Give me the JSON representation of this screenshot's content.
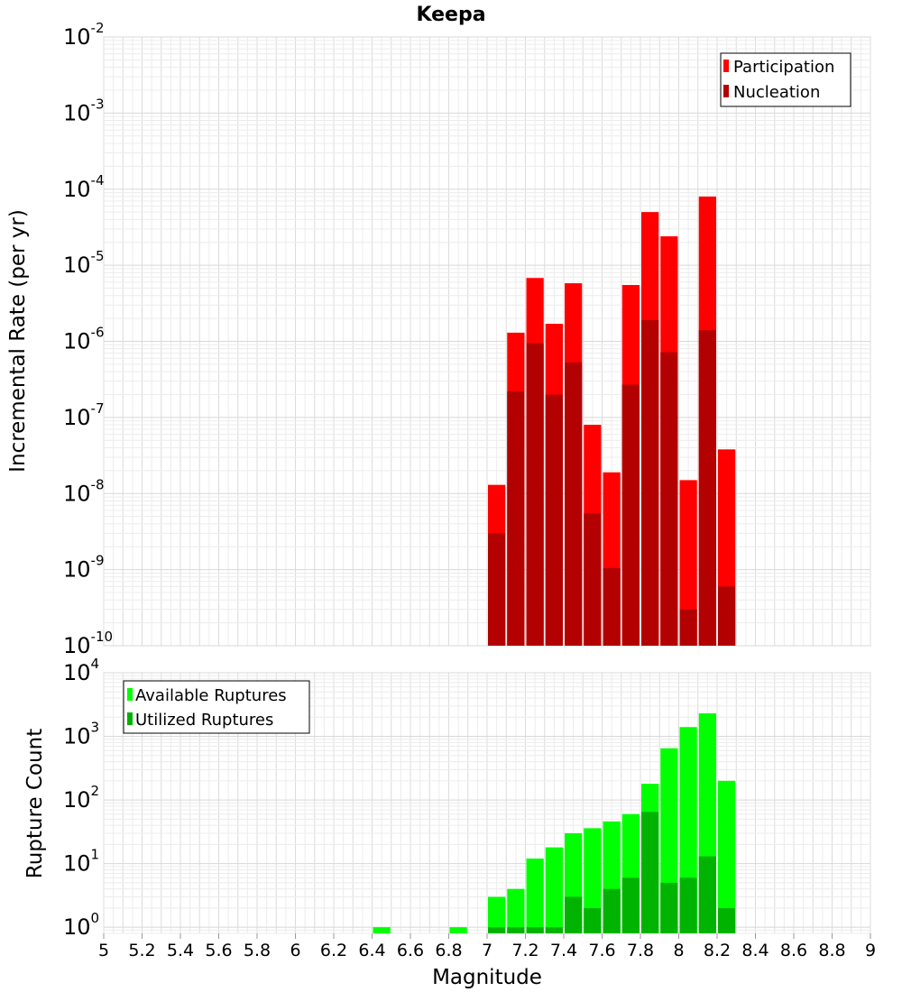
{
  "chart_data": [
    {
      "type": "bar",
      "title": "Keepa",
      "ylabel": "Incremental Rate (per yr)",
      "yscale": "log",
      "ylim": [
        1e-10,
        0.01
      ],
      "yticks": [
        {
          "base": "10",
          "exp": "-2",
          "value": 0.01
        },
        {
          "base": "10",
          "exp": "-3",
          "value": 0.001
        },
        {
          "base": "10",
          "exp": "-4",
          "value": 0.0001
        },
        {
          "base": "10",
          "exp": "-5",
          "value": 1e-05
        },
        {
          "base": "10",
          "exp": "-6",
          "value": 1e-06
        },
        {
          "base": "10",
          "exp": "-7",
          "value": 1e-07
        },
        {
          "base": "10",
          "exp": "-8",
          "value": 1e-08
        },
        {
          "base": "10",
          "exp": "-9",
          "value": 1e-09
        },
        {
          "base": "10",
          "exp": "-10",
          "value": 1e-10
        }
      ],
      "grid": true,
      "legend_position": "top-right",
      "x": [
        7.05,
        7.15,
        7.25,
        7.35,
        7.45,
        7.55,
        7.65,
        7.75,
        7.85,
        7.95,
        8.05,
        8.15,
        8.25
      ],
      "series": [
        {
          "name": "Participation",
          "color": "#ff0000",
          "values": [
            1.3e-08,
            1.3e-06,
            6.8e-06,
            1.7e-06,
            5.8e-06,
            8e-08,
            1.9e-08,
            5.5e-06,
            5e-05,
            2.4e-05,
            1.5e-08,
            8e-05,
            3.8e-08
          ]
        },
        {
          "name": "Nucleation",
          "color": "#b30000",
          "values": [
            3e-09,
            2.2e-07,
            9.5e-07,
            2e-07,
            5.3e-07,
            5.5e-09,
            1.05e-09,
            2.7e-07,
            1.9e-06,
            7.2e-07,
            3e-10,
            1.4e-06,
            6e-10
          ]
        }
      ]
    },
    {
      "type": "bar",
      "xlabel": "Magnitude",
      "ylabel": "Rupture Count",
      "yscale": "log",
      "ylim": [
        0.8,
        10000
      ],
      "yticks": [
        {
          "base": "10",
          "exp": "4",
          "value": 10000
        },
        {
          "base": "10",
          "exp": "3",
          "value": 1000
        },
        {
          "base": "10",
          "exp": "2",
          "value": 100
        },
        {
          "base": "10",
          "exp": "1",
          "value": 10
        },
        {
          "base": "10",
          "exp": "0",
          "value": 1
        }
      ],
      "xlim": [
        5,
        9
      ],
      "xticks": [
        "5",
        "5.2",
        "5.4",
        "5.6",
        "5.8",
        "6",
        "6.2",
        "6.4",
        "6.6",
        "6.8",
        "7",
        "7.2",
        "7.4",
        "7.6",
        "7.8",
        "8",
        "8.2",
        "8.4",
        "8.6",
        "8.8",
        "9"
      ],
      "grid": true,
      "legend_position": "top-left",
      "x": [
        6.45,
        6.85,
        7.05,
        7.15,
        7.25,
        7.35,
        7.45,
        7.55,
        7.65,
        7.75,
        7.85,
        7.95,
        8.05,
        8.15,
        8.25
      ],
      "series": [
        {
          "name": "Available Ruptures",
          "color": "#00ff00",
          "values": [
            1,
            1,
            3,
            4,
            12,
            18,
            30,
            36,
            46,
            60,
            180,
            650,
            1400,
            2300,
            200
          ]
        },
        {
          "name": "Utilized Ruptures",
          "color": "#00b300",
          "values": [
            0,
            0,
            1,
            1,
            1,
            1,
            3,
            2,
            4,
            6,
            65,
            5,
            6,
            13,
            2
          ]
        }
      ]
    }
  ]
}
